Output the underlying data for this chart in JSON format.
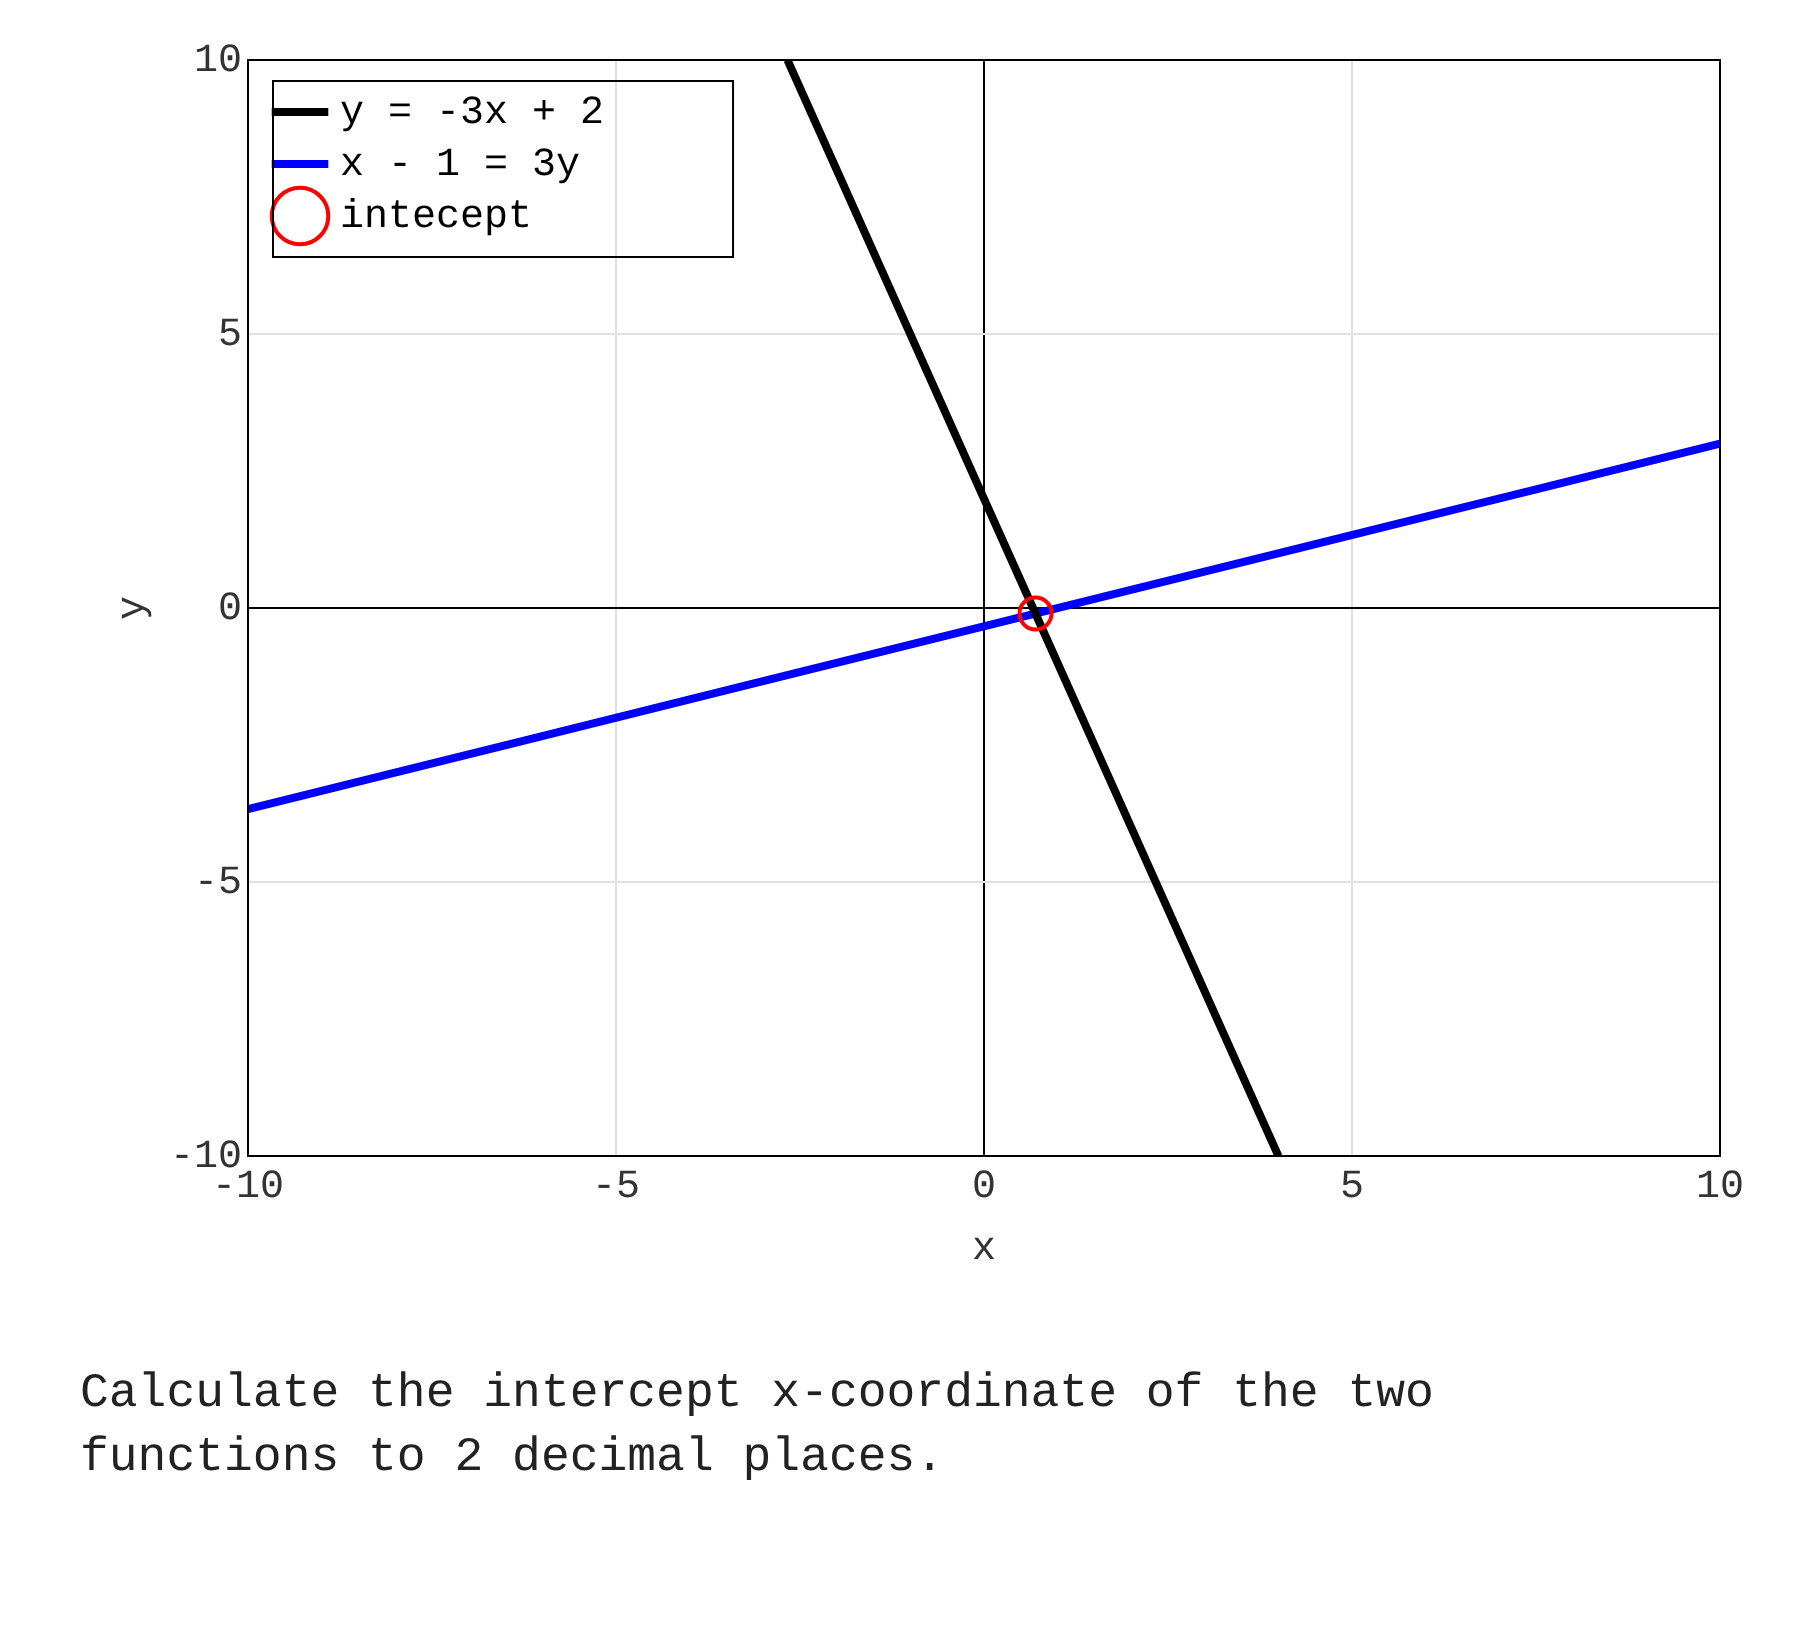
{
  "chart_data": {
    "type": "line",
    "xlabel": "x",
    "ylabel": "y",
    "xlim": [
      -10,
      10
    ],
    "xticks": [
      -10,
      -5,
      0,
      5,
      10
    ],
    "ylim": [
      -10,
      10
    ],
    "yticks": [
      -10,
      -5,
      0,
      5,
      10
    ],
    "grid": true,
    "legend": "top left",
    "series": [
      {
        "name": "y = -3x + 2",
        "color": "#000000",
        "x": [
          -2.67,
          4
        ],
        "values": [
          10,
          -10
        ]
      },
      {
        "name": "x - 1 = 3y",
        "color": "#0000ff",
        "x": [
          -10,
          10
        ],
        "values": [
          -3.67,
          3
        ]
      },
      {
        "name": "intecept",
        "type": "scatter",
        "marker": "circle",
        "color": "#ff0000",
        "x": [
          0.7
        ],
        "values": [
          -0.1
        ]
      }
    ],
    "annotations": [
      "Calculate the intercept x-coordinate of the two functions to 2 decimal places."
    ]
  }
}
